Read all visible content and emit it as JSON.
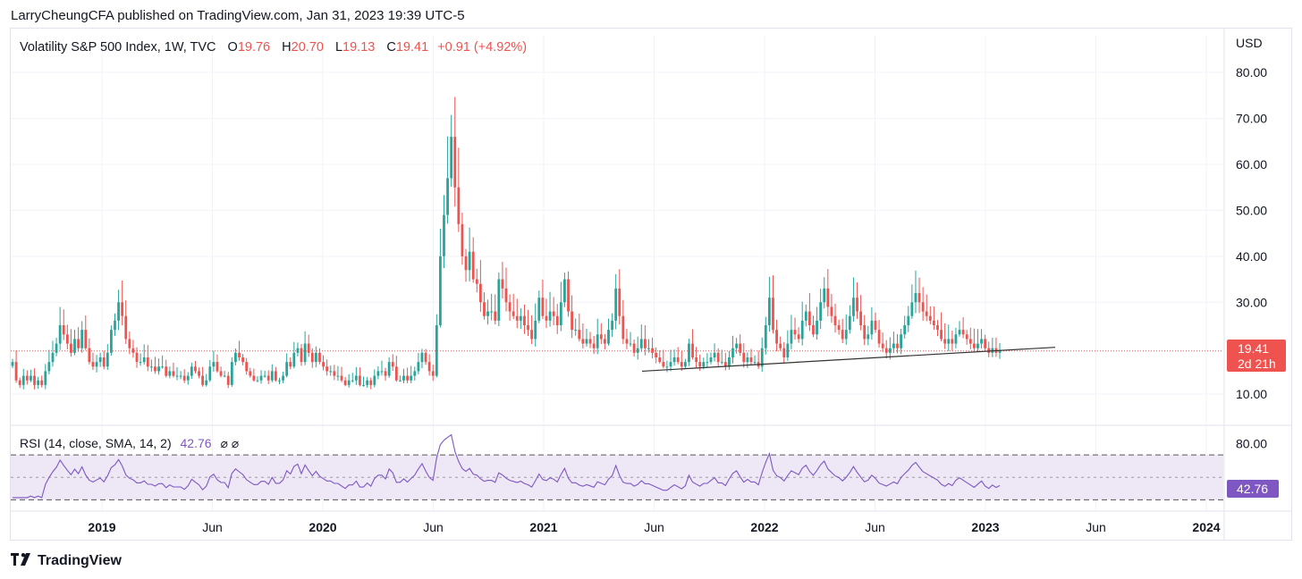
{
  "header": {
    "text": "LarryCheungCFA published on TradingView.com, Jan 31, 2023 19:39 UTC-5"
  },
  "legend": {
    "symbol": "Volatility S&P 500 Index, 1W, TVC",
    "o_label": "O",
    "o_value": "19.76",
    "h_label": "H",
    "h_value": "20.70",
    "l_label": "L",
    "l_value": "19.13",
    "c_label": "C",
    "c_value": "19.41",
    "change": "+0.91 (+4.92%)"
  },
  "currency": "USD",
  "price_tag": {
    "value": "19.41",
    "countdown": "2d 21h"
  },
  "rsi_legend": {
    "label": "RSI (14, close, SMA, 14, 2)",
    "value": "42.76",
    "icons": "⌀ ⌀"
  },
  "rsi_tag": "42.76",
  "footer": {
    "brand": "TradingView"
  },
  "colors": {
    "up": "#26a69a",
    "down": "#ef5350",
    "rsi": "#7e57c2",
    "rsi_band": "#ede7f6",
    "text": "#131722",
    "grid": "#f0f3fa"
  },
  "chart_data": {
    "type": "candlestick",
    "symbol": "VIX",
    "y_axis_ticks": [
      "80.00",
      "70.00",
      "60.00",
      "50.00",
      "40.00",
      "30.00",
      "10.00"
    ],
    "ylim": [
      4,
      88
    ],
    "x_axis_labels": [
      {
        "label": "2019",
        "year": true
      },
      {
        "label": "Jun",
        "year": false
      },
      {
        "label": "2020",
        "year": true
      },
      {
        "label": "Jun",
        "year": false
      },
      {
        "label": "2021",
        "year": true
      },
      {
        "label": "Jun",
        "year": false
      },
      {
        "label": "2022",
        "year": true
      },
      {
        "label": "Jun",
        "year": false
      },
      {
        "label": "2023",
        "year": true
      },
      {
        "label": "Jun",
        "year": false
      },
      {
        "label": "2024",
        "year": true
      }
    ],
    "close_series": [
      17,
      13,
      12,
      14,
      13,
      14,
      12,
      13,
      12,
      15,
      17,
      19,
      21,
      25,
      23,
      21,
      19,
      22,
      20,
      24,
      20,
      17,
      16,
      17,
      18,
      16,
      19,
      24,
      26,
      30,
      27,
      22,
      20,
      19,
      17,
      17,
      18,
      16,
      16,
      15,
      16,
      16,
      14,
      15,
      14,
      14,
      14,
      13,
      14,
      16,
      15,
      14,
      12,
      13,
      16,
      17,
      15,
      14,
      14,
      12,
      17,
      19,
      18,
      17,
      15,
      14,
      13,
      13,
      14,
      14,
      13,
      15,
      13,
      13,
      14,
      17,
      16,
      19,
      20,
      17,
      21,
      19,
      17,
      19,
      17,
      16,
      15,
      15,
      14,
      14,
      13,
      12,
      13,
      13,
      14,
      12,
      12,
      13,
      12,
      14,
      15,
      15,
      14,
      17,
      16,
      13,
      13,
      14,
      13,
      14,
      15,
      17,
      19,
      17,
      15,
      14,
      25,
      40,
      49,
      57,
      66,
      55,
      47,
      40,
      37,
      41,
      35,
      34,
      30,
      27,
      28,
      28,
      26,
      35,
      33,
      30,
      28,
      27,
      26,
      27,
      25,
      24,
      22,
      26,
      31,
      27,
      26,
      28,
      27,
      25,
      30,
      35,
      28,
      24,
      24,
      22,
      21,
      22,
      21,
      20,
      23,
      22,
      21,
      24,
      26,
      33,
      27,
      22,
      21,
      21,
      19,
      20,
      22,
      20,
      20,
      19,
      18,
      17,
      16,
      16,
      17,
      18,
      17,
      16,
      17,
      21,
      18,
      17,
      16,
      17,
      17,
      18,
      19,
      17,
      17,
      16,
      18,
      20,
      21,
      19,
      17,
      18,
      17,
      17,
      16,
      20,
      25,
      31,
      24,
      21,
      20,
      18,
      21,
      24,
      23,
      22,
      26,
      28,
      25,
      23,
      26,
      30,
      33,
      29,
      27,
      25,
      24,
      22,
      24,
      27,
      31,
      28,
      25,
      22,
      23,
      26,
      24,
      21,
      20,
      19,
      20,
      21,
      20,
      23,
      25,
      27,
      30,
      32,
      30,
      28,
      27,
      26,
      25,
      24,
      22,
      21,
      22,
      21,
      23,
      24,
      23,
      22,
      21,
      20,
      21,
      22,
      20,
      19,
      20,
      19,
      19.41
    ],
    "support_line": {
      "from": 15.0,
      "to": 20.2
    },
    "rsi": {
      "last": 42.76,
      "upper": 70,
      "middle": 50,
      "lower": 30,
      "axis_tick": "80.00"
    }
  }
}
